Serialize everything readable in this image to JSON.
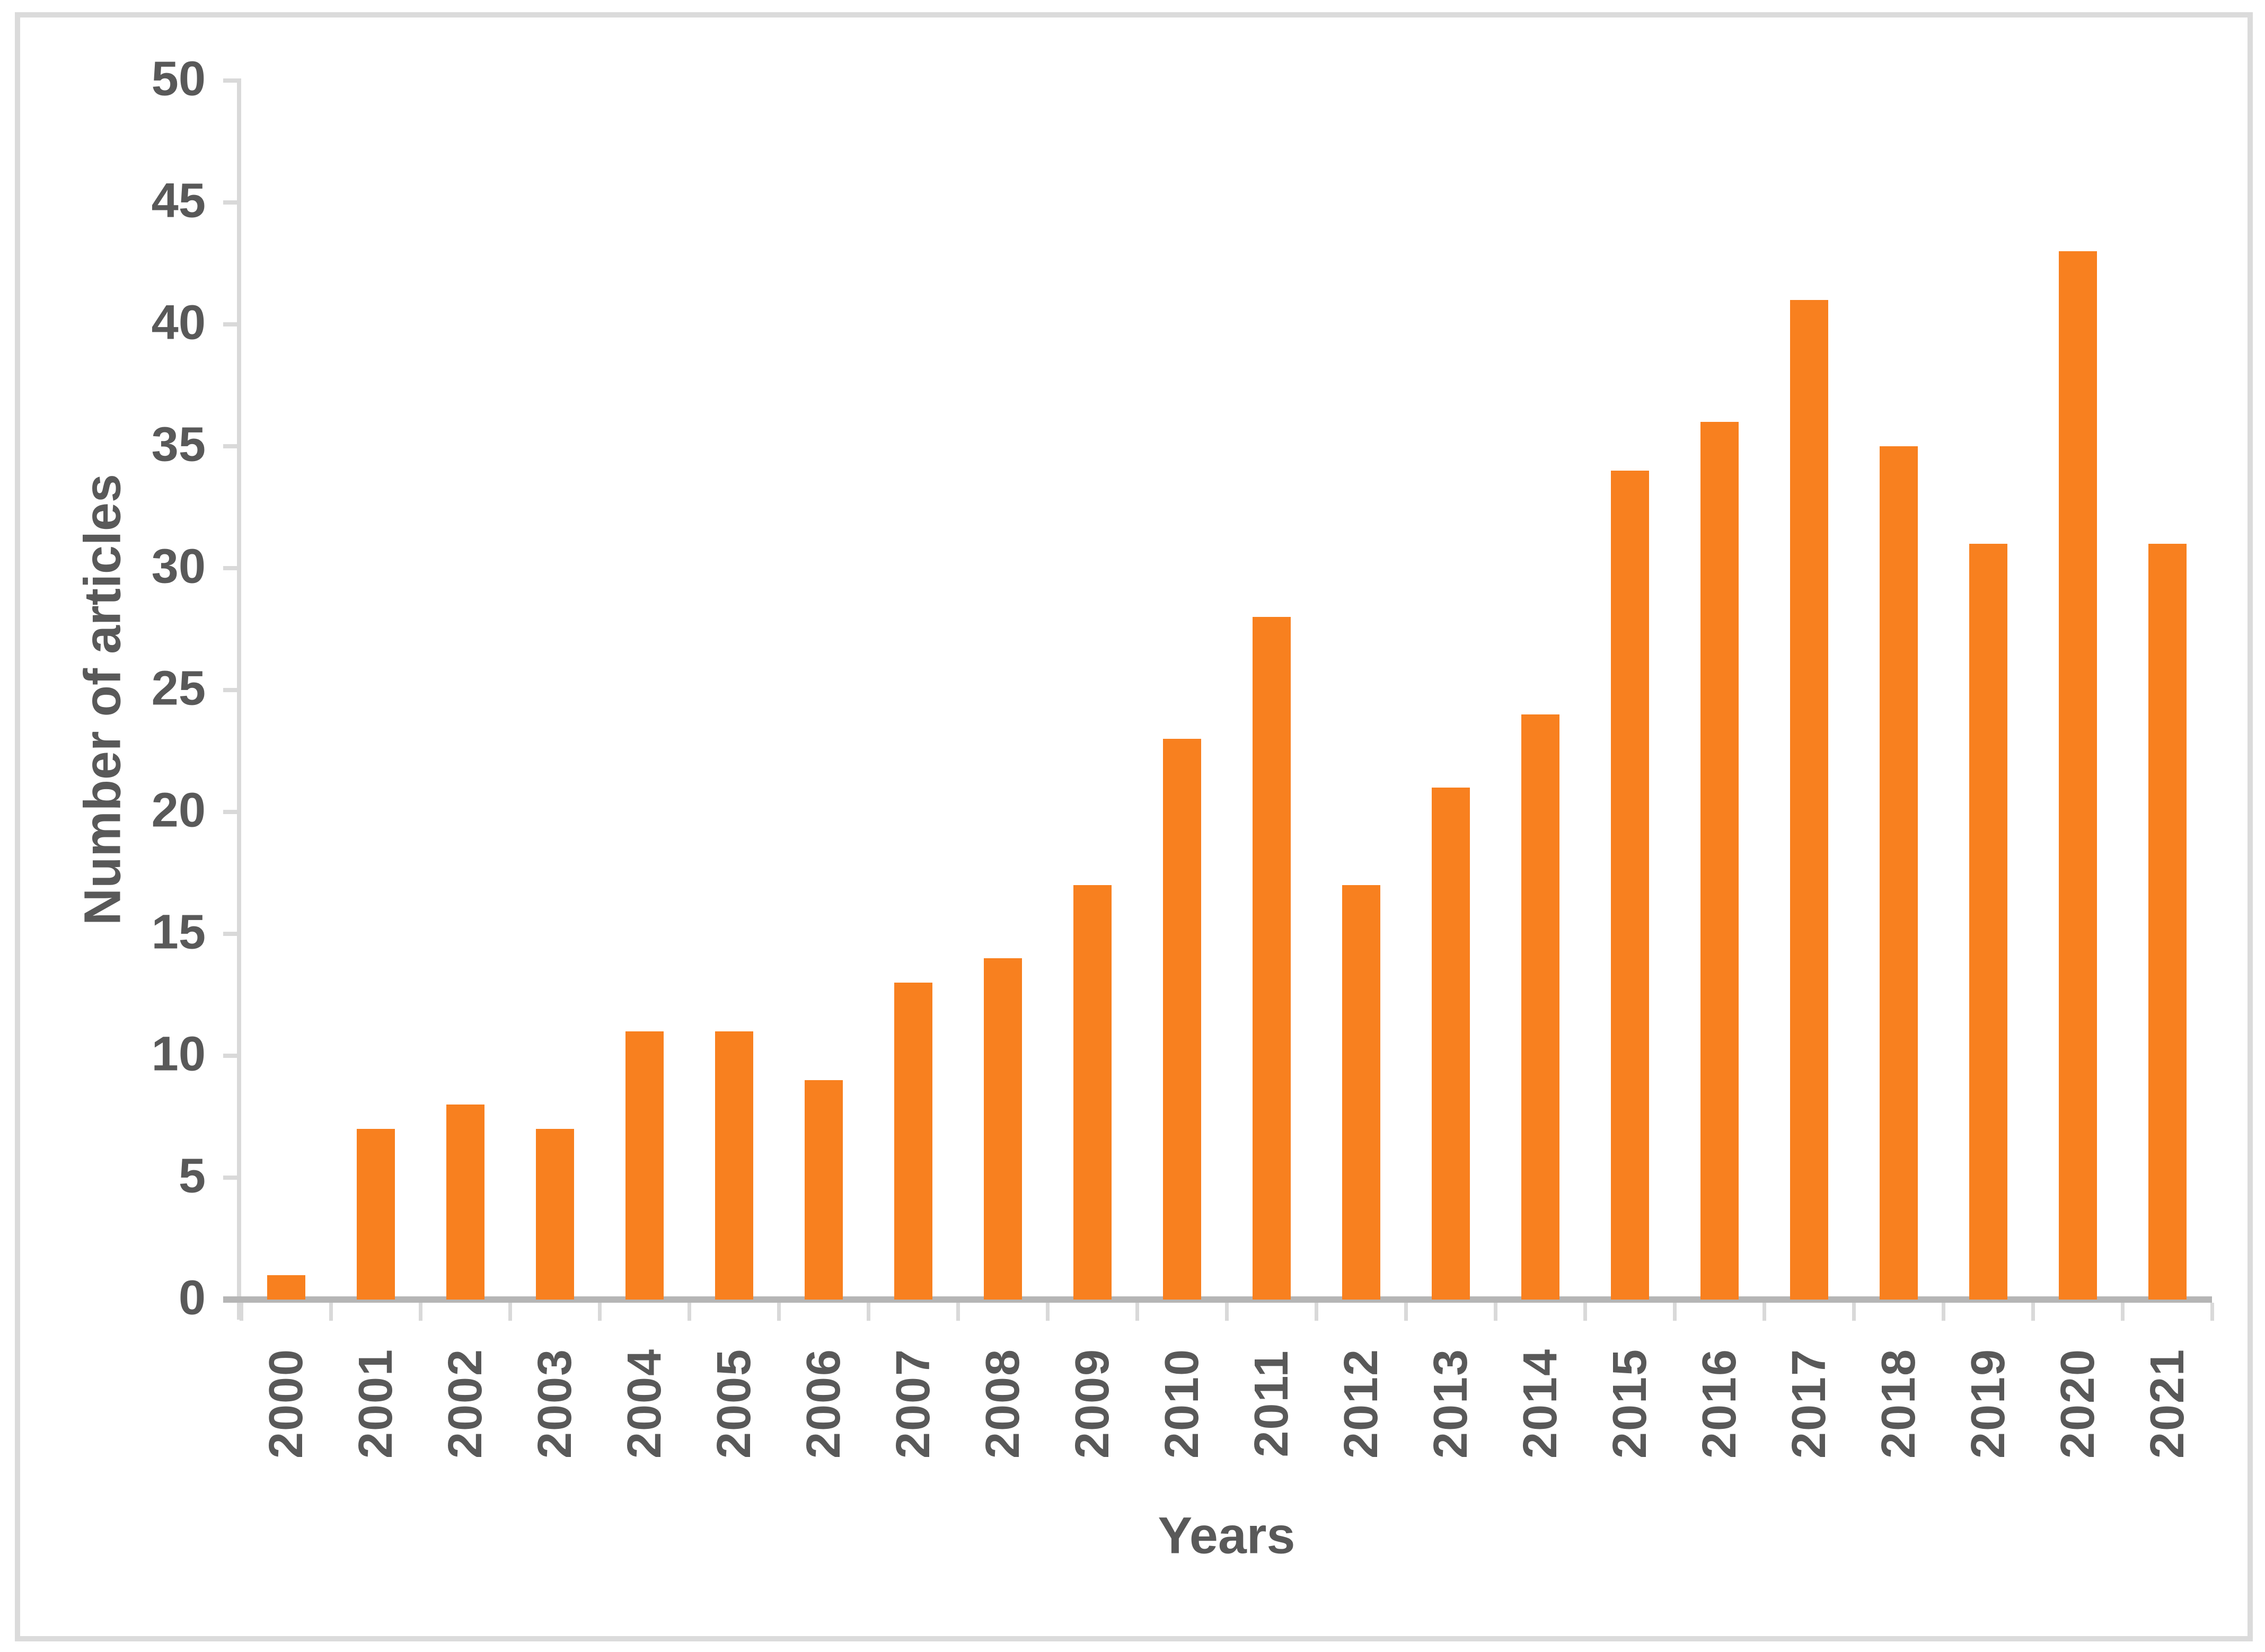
{
  "chart_data": {
    "type": "bar",
    "categories": [
      "2000",
      "2001",
      "2002",
      "2003",
      "2004",
      "2005",
      "2006",
      "2007",
      "2008",
      "2009",
      "2010",
      "2011",
      "2012",
      "2013",
      "2014",
      "2015",
      "2016",
      "2017",
      "2018",
      "2019",
      "2020",
      "2021"
    ],
    "values": [
      1,
      7,
      8,
      7,
      11,
      11,
      9,
      13,
      14,
      17,
      23,
      28,
      17,
      21,
      24,
      34,
      36,
      41,
      35,
      31,
      43,
      31
    ],
    "title": "",
    "xlabel": "Years",
    "ylabel": "Number of articles",
    "ylim": [
      0,
      50
    ],
    "ytick_step": 5,
    "ytick_labels": [
      "0",
      "5",
      "10",
      "15",
      "20",
      "25",
      "30",
      "35",
      "40",
      "45",
      "50"
    ],
    "grid": false,
    "legend": false,
    "bar_color": "#F8801F",
    "text_color": "#595959",
    "axis_tick_color": "#D9D9D9",
    "baseline_color": "#B5B5B5",
    "frame_color": "#DBDBDB"
  }
}
